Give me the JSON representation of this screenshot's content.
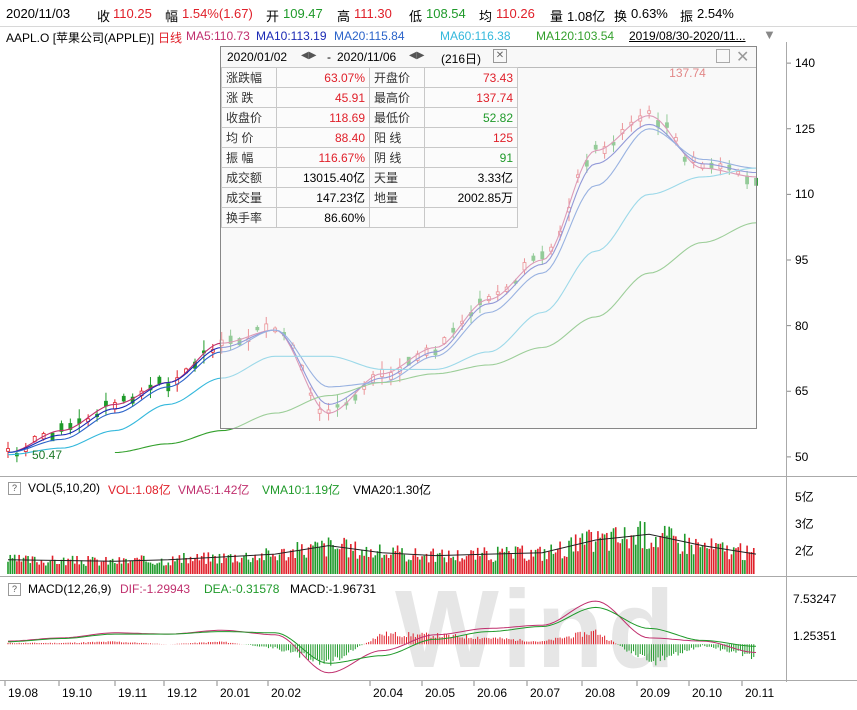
{
  "quote_bar": {
    "date": "2020/11/03",
    "close_label": "收",
    "close": "110.25",
    "change_label": "幅",
    "change": "1.54%(1.67)",
    "open_label": "开",
    "open": "109.47",
    "high_label": "高",
    "high": "111.30",
    "low_label": "低",
    "low": "108.54",
    "avg_label": "均",
    "avg": "110.26",
    "volume_label": "量",
    "volume": "1.08亿",
    "turnover_label": "换",
    "turnover": "0.63%",
    "amplitude_label": "振",
    "amplitude": "2.54%"
  },
  "legend": {
    "ticker": "AAPL.O [苹果公司(APPLE)]",
    "period": "日线",
    "ma5": "MA5:110.73",
    "ma10": "MA10:113.19",
    "ma20": "MA20:115.84",
    "ma60": "MA60:116.38",
    "ma120": "MA120:103.54",
    "range": "2019/08/30-2020/11..."
  },
  "colors": {
    "up": "#e0202a",
    "down": "#1f9a2a",
    "ma5": "#c0306e",
    "ma10": "#1b2ab5",
    "ma20": "#2a63c9",
    "ma60": "#34b8dc",
    "ma120": "#33a02c",
    "dea": "#1f9a2a",
    "dif": "#c0306e"
  },
  "stats_box": {
    "range_start": "2020/01/02",
    "range_end": "2020/11/06",
    "days": "(216日)",
    "rows": [
      [
        "涨跌幅",
        "63.07%",
        "开盘价",
        "73.43"
      ],
      [
        "涨  跌",
        "45.91",
        "最高价",
        "137.74"
      ],
      [
        "收盘价",
        "118.69",
        "最低价",
        "52.82"
      ],
      [
        "均  价",
        "88.40",
        "阳  线",
        "125"
      ],
      [
        "振  幅",
        "116.67%",
        "阴  线",
        "91"
      ],
      [
        "成交额",
        "13015.40亿",
        "天量",
        "3.33亿"
      ],
      [
        "成交量",
        "147.23亿",
        "地量",
        "2002.85万"
      ],
      [
        "换手率",
        "86.60%",
        "",
        ""
      ]
    ]
  },
  "vol_panel": {
    "title": "VOL(5,10,20)",
    "vol": "VOL:1.08亿",
    "vma5": "VMA5:1.42亿",
    "vma10": "VMA10:1.19亿",
    "vma20": "VMA20:1.30亿",
    "ticks": [
      "5亿",
      "3亿",
      "2亿"
    ]
  },
  "macd_panel": {
    "title": "MACD(12,26,9)",
    "dif": "DIF:-1.29943",
    "dea": "DEA:-0.31578",
    "macd": "MACD:-1.96731",
    "ticks": [
      "7.53247",
      "1.25351"
    ]
  },
  "watermark": "Wind",
  "chart_data": [
    {
      "type": "line",
      "title": "AAPL.O 日线",
      "y_axis_ticks": [
        140,
        125,
        110,
        95,
        80,
        65,
        50
      ],
      "x_axis_ticks": [
        "19.08",
        "19.10",
        "19.11",
        "19.12",
        "20.01",
        "20.02",
        "20.04",
        "20.05",
        "20.06",
        "20.07",
        "20.08",
        "20.09",
        "20.10",
        "20.11"
      ],
      "annotations": [
        {
          "label": "137.74",
          "x": "20.09",
          "y": 137.74
        },
        {
          "label": "50.47",
          "x": "19.08",
          "y": 50.47
        }
      ],
      "series": [
        {
          "name": "MA5",
          "x": [
            "19.08",
            "19.10",
            "19.11",
            "19.12",
            "20.01",
            "20.02",
            "20.03",
            "20.04",
            "20.05",
            "20.06",
            "20.07",
            "20.08",
            "20.09",
            "20.10",
            "20.11"
          ],
          "values": [
            51,
            56,
            62,
            67,
            76,
            79,
            60,
            69,
            75,
            86,
            95,
            120,
            128,
            116,
            114
          ]
        },
        {
          "name": "MA10",
          "x": [
            "19.08",
            "19.10",
            "19.11",
            "19.12",
            "20.01",
            "20.02",
            "20.03",
            "20.04",
            "20.05",
            "20.06",
            "20.07",
            "20.08",
            "20.09",
            "20.10",
            "20.11"
          ],
          "values": [
            51,
            55,
            61,
            67,
            75,
            79,
            62,
            68,
            74,
            85,
            94,
            117,
            126,
            117,
            115
          ]
        },
        {
          "name": "MA20",
          "x": [
            "19.08",
            "19.10",
            "19.11",
            "19.12",
            "20.01",
            "20.02",
            "20.03",
            "20.04",
            "20.05",
            "20.06",
            "20.07",
            "20.08",
            "20.09",
            "20.10",
            "20.11"
          ],
          "values": [
            51,
            54,
            60,
            66,
            74,
            79,
            66,
            67,
            73,
            83,
            92,
            112,
            125,
            118,
            116
          ]
        },
        {
          "name": "MA60",
          "x": [
            "19.08",
            "19.10",
            "19.11",
            "19.12",
            "20.01",
            "20.02",
            "20.03",
            "20.04",
            "20.05",
            "20.06",
            "20.07",
            "20.08",
            "20.09",
            "20.10",
            "20.11"
          ],
          "values": [
            50.5,
            52,
            56,
            62,
            68,
            73,
            73,
            70,
            70,
            74,
            83,
            97,
            110,
            114,
            116
          ]
        },
        {
          "name": "MA120",
          "x": [
            "19.08",
            "19.10",
            "19.11",
            "19.12",
            "20.01",
            "20.02",
            "20.03",
            "20.04",
            "20.05",
            "20.06",
            "20.07",
            "20.08",
            "20.09",
            "20.10",
            "20.11"
          ],
          "values": [
            null,
            null,
            51,
            53,
            56,
            60,
            64,
            67,
            69,
            71,
            75,
            82,
            92,
            99,
            103.5
          ]
        }
      ],
      "ylim": [
        47,
        143
      ]
    },
    {
      "type": "bar",
      "title": "VOL(5,10,20)",
      "y_axis_ticks": [
        "5亿",
        "3亿",
        "2亿"
      ],
      "x": [
        "19.08",
        "19.10",
        "19.11",
        "19.12",
        "20.01",
        "20.02",
        "20.03",
        "20.04",
        "20.05",
        "20.06",
        "20.07",
        "20.08",
        "20.09",
        "20.10",
        "20.11"
      ],
      "values": [
        1.0,
        0.95,
        0.9,
        1.0,
        1.2,
        1.4,
        2.0,
        1.5,
        1.3,
        1.4,
        1.5,
        2.4,
        2.8,
        2.0,
        1.4
      ]
    },
    {
      "type": "bar",
      "title": "MACD(12,26,9)",
      "y_axis_ticks": [
        "7.53247",
        "1.25351"
      ],
      "x": [
        "19.08",
        "19.10",
        "19.11",
        "19.12",
        "20.01",
        "20.02",
        "20.03",
        "20.04",
        "20.05",
        "20.06",
        "20.07",
        "20.08",
        "20.09",
        "20.10",
        "20.11"
      ],
      "series": [
        {
          "name": "DIF",
          "values": [
            0.5,
            1.0,
            1.8,
            1.6,
            2.2,
            1.5,
            -4.5,
            -1.0,
            1.5,
            2.5,
            3.0,
            6.8,
            1.0,
            0.5,
            -1.3
          ]
        },
        {
          "name": "DEA",
          "values": [
            0.4,
            0.9,
            1.6,
            1.6,
            2.0,
            1.8,
            -3.0,
            -1.8,
            0.8,
            2.0,
            2.8,
            5.8,
            2.5,
            0.6,
            -0.32
          ]
        },
        {
          "name": "MACD",
          "values": [
            0.2,
            0.2,
            0.4,
            0.0,
            0.4,
            -0.6,
            -3.0,
            1.6,
            1.4,
            1.0,
            0.4,
            2.0,
            -3.0,
            -0.2,
            -1.97
          ]
        }
      ]
    }
  ]
}
